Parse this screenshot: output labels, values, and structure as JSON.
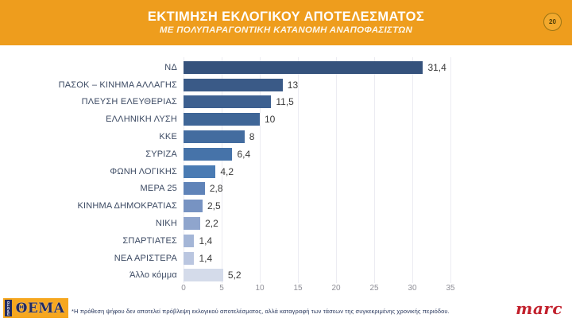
{
  "header": {
    "title": "ΕΚΤΙΜΗΣΗ ΕΚΛΟΓΙΚΟΥ ΑΠΟΤΕΛΕΣΜΑΤΟΣ",
    "subtitle": "ΜΕ ΠΟΛΥΠΑΡΑΓΟΝΤΙΚΗ ΚΑΤΑΝΟΜΗ ΑΝΑΠΟΦΑΣΙΣΤΩΝ",
    "slide_number": "20",
    "background_color": "#ee9d1d"
  },
  "chart_data": {
    "type": "bar",
    "orientation": "horizontal",
    "title": "ΕΚΤΙΜΗΣΗ ΕΚΛΟΓΙΚΟΥ ΑΠΟΤΕΛΕΣΜΑΤΟΣ ΜΕ ΠΟΛΥΠΑΡΑΓΟΝΤΙΚΗ ΚΑΤΑΝΟΜΗ ΑΝΑΠΟΦΑΣΙΣΤΩΝ",
    "categories": [
      "ΝΔ",
      "ΠΑΣΟΚ – ΚΙΝΗΜΑ ΑΛΛΑΓΗΣ",
      "ΠΛΕΥΣΗ ΕΛΕΥΘΕΡΙΑΣ",
      "ΕΛΛΗΝΙΚΗ ΛΥΣΗ",
      "ΚΚΕ",
      "ΣΥΡΙΖΑ",
      "ΦΩΝΗ ΛΟΓΙΚΗΣ",
      "ΜΕΡΑ 25",
      "ΚΙΝΗΜΑ ΔΗΜΟΚΡΑΤΙΑΣ",
      "ΝΙΚΗ",
      "ΣΠΑΡΤΙΑΤΕΣ",
      "ΝΕΑ ΑΡΙΣΤΕΡΑ",
      "Άλλο κόμμα"
    ],
    "values": [
      31.4,
      13,
      11.5,
      10,
      8,
      6.4,
      4.2,
      2.8,
      2.5,
      2.2,
      1.4,
      1.4,
      5.2
    ],
    "value_labels": [
      "31,4",
      "13",
      "11,5",
      "10",
      "8",
      "6,4",
      "4,2",
      "2,8",
      "2,5",
      "2,2",
      "1,4",
      "1,4",
      "5,2"
    ],
    "bar_colors": [
      "#35527c",
      "#3a5a87",
      "#3d6090",
      "#3f6697",
      "#436c9f",
      "#4673a9",
      "#4a7bb3",
      "#5f83b8",
      "#7793c2",
      "#8fa5cd",
      "#a4b6d7",
      "#bac6e0",
      "#d4dbea"
    ],
    "x_ticks": [
      0,
      5,
      10,
      15,
      20,
      25,
      30,
      35
    ],
    "xlim": [
      0,
      35
    ],
    "grid": true,
    "legend": "none"
  },
  "footer": {
    "note": "*Η πρόθεση ψήφου δεν αποτελεί πρόβλεψη εκλογικού αποτελέσματος, αλλά καταγραφή των τάσεων της συγκεκριμένης χρονικής περιόδου.",
    "publisher_logo": {
      "prefix": "ΠΡΩΤΟ",
      "word": "ΘΕΜΑ"
    },
    "agency_logo": "marc"
  }
}
